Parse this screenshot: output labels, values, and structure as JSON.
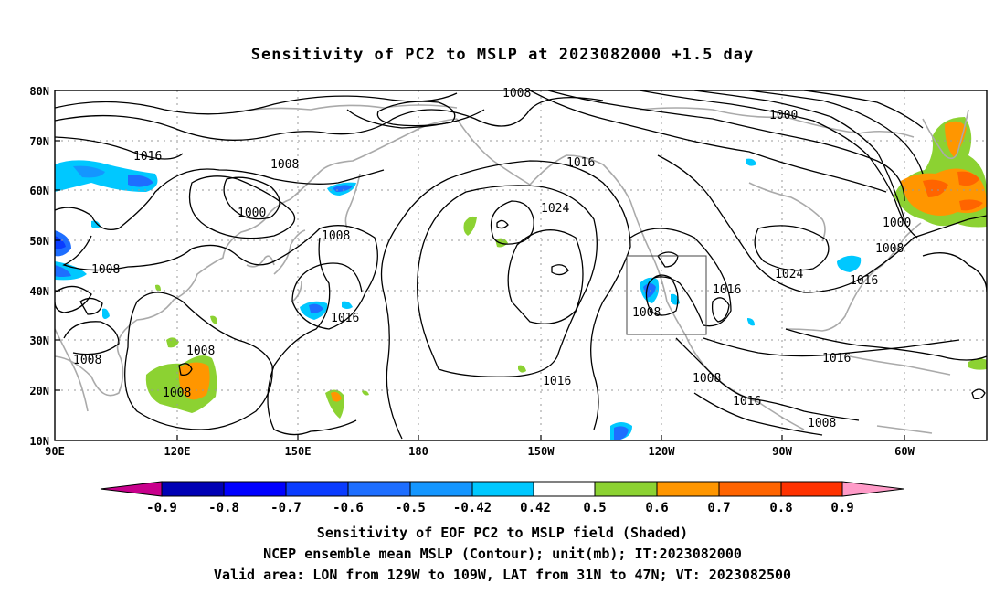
{
  "title": "Sensitivity of PC2 to MSLP at 2023082000 +1.5 day",
  "lat_labels": [
    "80N",
    "70N",
    "60N",
    "50N",
    "40N",
    "30N",
    "20N",
    "10N"
  ],
  "lon_labels": [
    "90E",
    "120E",
    "150E",
    "180",
    "150W",
    "120W",
    "90W",
    "60W"
  ],
  "contour_labels": [
    {
      "text": "1008"
    },
    {
      "text": "1016"
    },
    {
      "text": "1008"
    },
    {
      "text": "1000"
    },
    {
      "text": "1008"
    },
    {
      "text": "1008"
    },
    {
      "text": "1016"
    },
    {
      "text": "1016"
    },
    {
      "text": "1024"
    },
    {
      "text": "1000"
    },
    {
      "text": "1024"
    },
    {
      "text": "1000"
    },
    {
      "text": "1008"
    },
    {
      "text": "1016"
    },
    {
      "text": "1016"
    },
    {
      "text": "1008"
    },
    {
      "text": "1008"
    },
    {
      "text": "1008"
    },
    {
      "text": "1008"
    },
    {
      "text": "1016"
    },
    {
      "text": "1008"
    },
    {
      "text": "1016"
    },
    {
      "text": "1008"
    }
  ],
  "colorbar": {
    "labels": [
      "-0.9",
      "-0.8",
      "-0.7",
      "-0.6",
      "-0.5",
      "-0.42",
      "0.42",
      "0.5",
      "0.6",
      "0.7",
      "0.8",
      "0.9"
    ],
    "colors": [
      "#c8008c",
      "#0000b4",
      "#0000ff",
      "#0a3cff",
      "#1e6eff",
      "#1496ff",
      "#00c8ff",
      "#ffffff",
      "#8cd232",
      "#ff9600",
      "#ff6400",
      "#ff3200",
      "#ff0000",
      "#ff9bc8"
    ]
  },
  "captions": {
    "line1": "Sensitivity of EOF PC2 to MSLP field (Shaded)",
    "line2": "NCEP ensemble mean MSLP (Contour); unit(mb); IT:2023082000",
    "line3": "Valid area: LON from 129W to 109W, LAT from 31N to 47N; VT: 2023082500"
  }
}
